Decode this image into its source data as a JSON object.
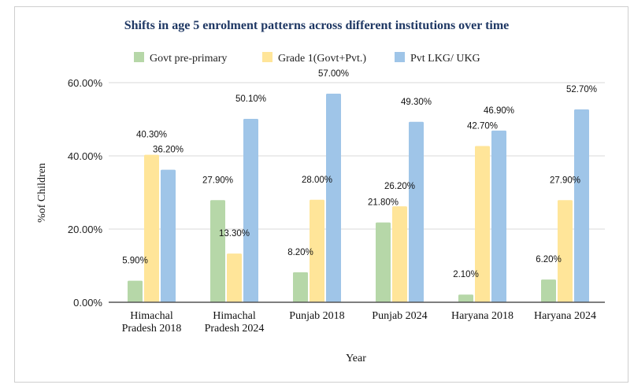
{
  "chart_data": {
    "type": "bar",
    "title": "Shifts in age 5 enrolment patterns across different institutions over time",
    "xlabel": "Year",
    "ylabel": "%of Children",
    "ylim": [
      0,
      60
    ],
    "yticks": [
      "0.00%",
      "20.00%",
      "40.00%",
      "60.00%"
    ],
    "grid": true,
    "legend_position": "top",
    "categories": [
      [
        "Himachal",
        "Pradesh 2018"
      ],
      [
        "Himachal",
        "Pradesh 2024"
      ],
      [
        "Punjab 2018"
      ],
      [
        "Punjab 2024"
      ],
      [
        "Haryana 2018"
      ],
      [
        "Haryana 2024"
      ]
    ],
    "series": [
      {
        "name": "Govt pre-primary",
        "color": "#b6d7a8",
        "values": [
          5.9,
          27.9,
          8.2,
          21.8,
          2.1,
          6.2
        ],
        "labels": [
          "5.90%",
          "27.90%",
          "8.20%",
          "21.80%",
          "2.10%",
          "6.20%"
        ]
      },
      {
        "name": "Grade 1(Govt+Pvt.)",
        "color": "#ffe599",
        "values": [
          40.3,
          13.3,
          28.0,
          26.2,
          42.7,
          27.9
        ],
        "labels": [
          "40.30%",
          "13.30%",
          "28.00%",
          "26.20%",
          "42.70%",
          "27.90%"
        ]
      },
      {
        "name": "Pvt LKG/ UKG",
        "color": "#9fc5e8",
        "values": [
          36.2,
          50.1,
          57.0,
          49.3,
          46.9,
          52.7
        ],
        "labels": [
          "36.20%",
          "50.10%",
          "57.00%",
          "49.30%",
          "46.90%",
          "52.70%"
        ]
      }
    ]
  }
}
